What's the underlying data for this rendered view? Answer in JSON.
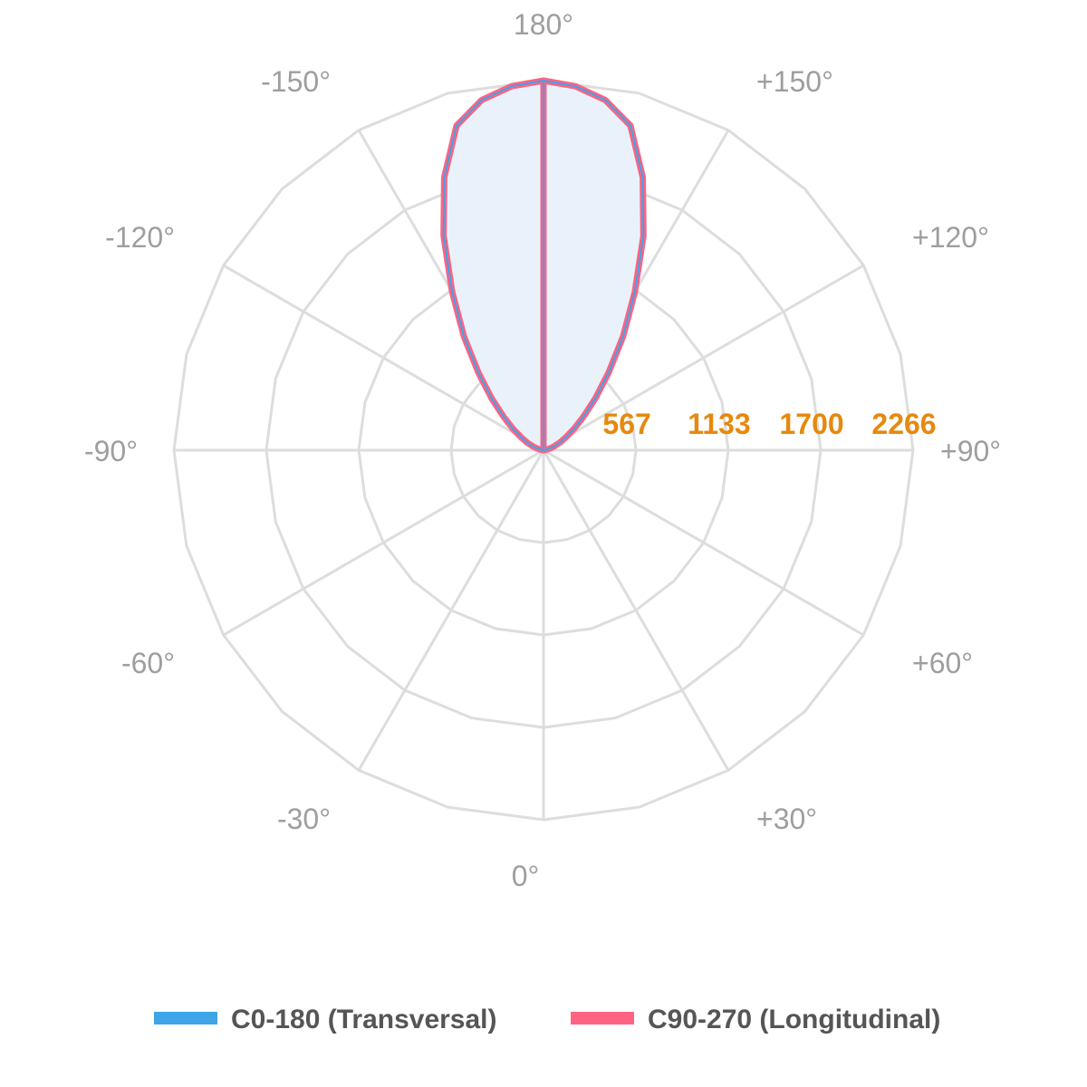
{
  "chart_data": {
    "type": "polar",
    "angle_labels": [
      "0°",
      "+30°",
      "+60°",
      "+90°",
      "+120°",
      "+150°",
      "180°",
      "-150°",
      "-120°",
      "-90°",
      "-60°",
      "-30°"
    ],
    "angle_label_degrees": [
      0,
      30,
      60,
      90,
      120,
      150,
      180,
      -150,
      -120,
      -90,
      -60,
      -30
    ],
    "radial_ticks": [
      567,
      1133,
      1700,
      2266
    ],
    "r_max": 2266,
    "grid": true,
    "legend_position": "bottom",
    "angles": [
      180,
      175,
      170,
      165,
      160,
      155,
      150,
      145,
      140,
      135,
      130,
      125,
      120,
      115,
      110,
      105,
      100,
      95,
      90
    ],
    "series": [
      {
        "name": "C0-180 (Transversal)",
        "color": "#3ea5e8",
        "values": [
          2266,
          2240,
          2180,
          2060,
          1780,
          1450,
          1120,
          850,
          620,
          450,
          320,
          230,
          160,
          110,
          70,
          40,
          20,
          8,
          0
        ]
      },
      {
        "name": "C90-270 (Longitudinal)",
        "color": "#ff6384",
        "values": [
          2266,
          2240,
          2180,
          2060,
          1780,
          1450,
          1120,
          850,
          620,
          450,
          320,
          230,
          160,
          110,
          70,
          40,
          20,
          8,
          0
        ]
      }
    ],
    "fill_color": "#e9f2fb"
  }
}
